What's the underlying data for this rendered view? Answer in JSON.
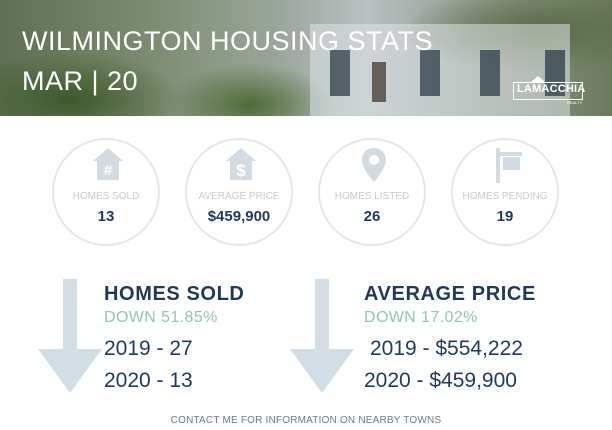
{
  "header": {
    "title": "WILMINGTON HOUSING STATS",
    "subtitle": "MAR | 20",
    "logo_text": "LAMACCHIA",
    "logo_sub": "REALTY"
  },
  "stats": [
    {
      "icon": "house-hash-icon",
      "label": "HOMES SOLD",
      "value": "13"
    },
    {
      "icon": "house-dollar-icon",
      "label": "AVERAGE PRICE",
      "value": "$459,900"
    },
    {
      "icon": "map-pin-icon",
      "label": "HOMES LISTED",
      "value": "26"
    },
    {
      "icon": "sign-post-icon",
      "label": "HOMES PENDING",
      "value": "19"
    }
  ],
  "comparisons": [
    {
      "title": "HOMES SOLD",
      "change": "DOWN 51.85%",
      "line1": "2019 - 27",
      "line2": "2020 - 13"
    },
    {
      "title": "AVERAGE PRICE",
      "change": "DOWN 17.02%",
      "line1": "2019 - $554,222",
      "line2": "2020 - $459,900"
    }
  ],
  "footer": "CONTACT ME FOR INFORMATION ON NEARBY TOWNS",
  "colors": {
    "navy": "#1f3a5c",
    "teal": "#8fc6b3",
    "light_gray": "#c2cbd3",
    "arrow": "#d3dde6"
  }
}
